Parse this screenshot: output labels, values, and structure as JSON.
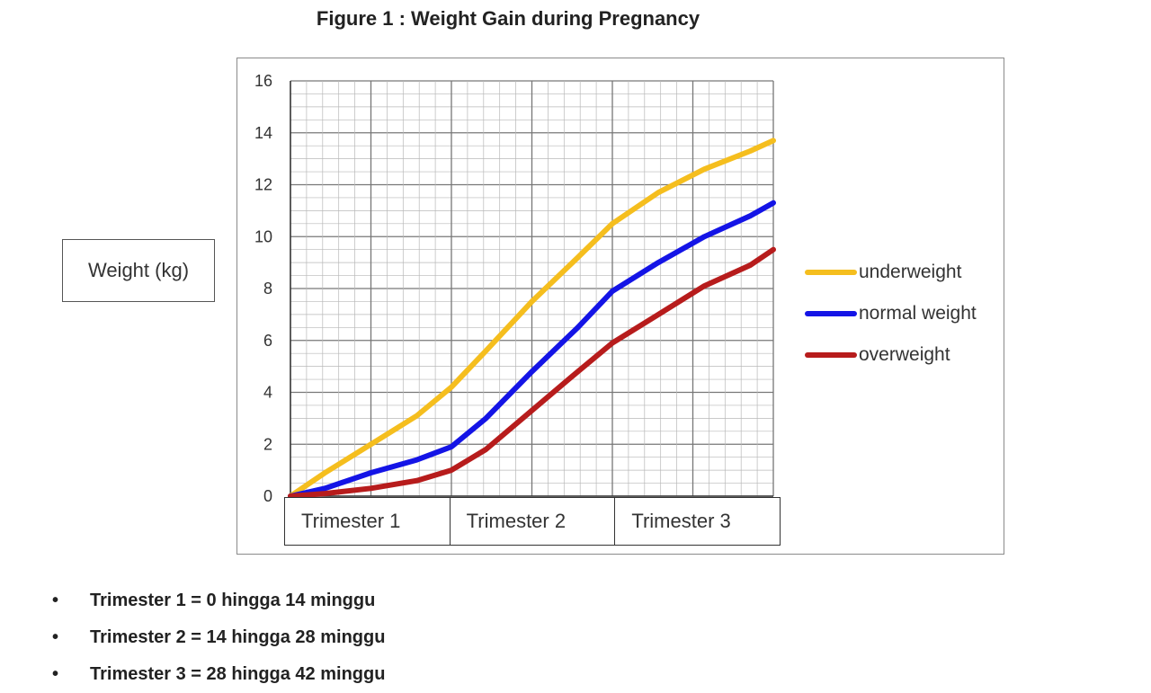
{
  "title": "Figure 1 : Weight Gain during Pregnancy",
  "ylabel": "Weight (kg)",
  "legend": [
    {
      "label": "underweight",
      "color": "#F5BE1E"
    },
    {
      "label": "normal weight",
      "color": "#1414E6"
    },
    {
      "label": "overweight",
      "color": "#B71C1C"
    }
  ],
  "trimesters": [
    "Trimester 1",
    "Trimester 2",
    "Trimester 3"
  ],
  "notes": [
    "Trimester 1 = 0 hingga 14 minggu",
    "Trimester 2 = 14 hingga 28 minggu",
    "Trimester 3 = 28 hingga 42 minggu"
  ],
  "chart_data": {
    "type": "line",
    "title": "Figure 1 : Weight Gain during Pregnancy",
    "xlabel": "",
    "ylabel": "Weight (kg)",
    "x_categories": [
      "Trimester 1",
      "Trimester 2",
      "Trimester 3"
    ],
    "xlim": [
      0,
      42
    ],
    "ylim": [
      0,
      16
    ],
    "yticks": [
      0,
      2,
      4,
      6,
      8,
      10,
      12,
      14,
      16
    ],
    "grid": true,
    "legend_position": "right",
    "series": [
      {
        "name": "underweight",
        "color": "#F5BE1E",
        "x": [
          0,
          3,
          7,
          11,
          14,
          17,
          21,
          25,
          28,
          32,
          36,
          40,
          42
        ],
        "y": [
          0,
          0.9,
          2.0,
          3.1,
          4.2,
          5.6,
          7.5,
          9.2,
          10.5,
          11.7,
          12.6,
          13.3,
          13.7
        ]
      },
      {
        "name": "normal weight",
        "color": "#1414E6",
        "x": [
          0,
          3,
          7,
          11,
          14,
          17,
          21,
          25,
          28,
          32,
          36,
          40,
          42
        ],
        "y": [
          0,
          0.3,
          0.9,
          1.4,
          1.9,
          3.0,
          4.8,
          6.5,
          7.9,
          9.0,
          10.0,
          10.8,
          11.3
        ]
      },
      {
        "name": "overweight",
        "color": "#B71C1C",
        "x": [
          0,
          3,
          7,
          11,
          14,
          17,
          21,
          25,
          28,
          32,
          36,
          40,
          42
        ],
        "y": [
          0,
          0.1,
          0.3,
          0.6,
          1.0,
          1.8,
          3.3,
          4.8,
          5.9,
          7.0,
          8.1,
          8.9,
          9.5
        ]
      }
    ]
  }
}
